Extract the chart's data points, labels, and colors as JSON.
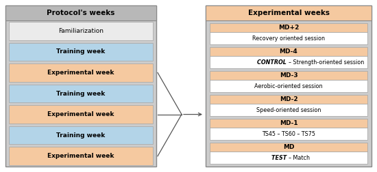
{
  "left_title": "Protocol's weeks",
  "left_title_bg": "#b8b8b8",
  "left_outer_bg": "#cccccc",
  "left_rows": [
    {
      "text": "Familiarization",
      "bg": "#ebebeb",
      "bold": false
    },
    {
      "text": "Training week",
      "bg": "#b3d4e8",
      "bold": true
    },
    {
      "text": "Experimental week",
      "bg": "#f5c9a0",
      "bold": true
    },
    {
      "text": "Training week",
      "bg": "#b3d4e8",
      "bold": true
    },
    {
      "text": "Experimental week",
      "bg": "#f5c9a0",
      "bold": true
    },
    {
      "text": "Training week",
      "bg": "#b3d4e8",
      "bold": true
    },
    {
      "text": "Experimental week",
      "bg": "#f5c9a0",
      "bold": true
    }
  ],
  "right_title": "Experimental weeks",
  "right_title_bg": "#f5c9a0",
  "right_outer_bg": "#cccccc",
  "right_rows": [
    {
      "top": "MD+2",
      "bottom": "Recovery oriented session",
      "bottom_style": "normal"
    },
    {
      "top": "MD-4",
      "bottom": "CONTROL – Strength-oriented session",
      "bottom_style": "control"
    },
    {
      "top": "MD-3",
      "bottom": "Aerobic-oriented session",
      "bottom_style": "normal"
    },
    {
      "top": "MD-2",
      "bottom": "Speed-oriented session",
      "bottom_style": "normal"
    },
    {
      "top": "MD-1",
      "bottom": "TS45 – TS60 – TS75",
      "bottom_style": "normal"
    },
    {
      "top": "MD",
      "bottom": "TEST – Match",
      "bottom_style": "test"
    }
  ],
  "right_row_top_bg": "#f5c9a0",
  "right_row_bot_bg": "#ffffff",
  "arrow_color": "#555555"
}
